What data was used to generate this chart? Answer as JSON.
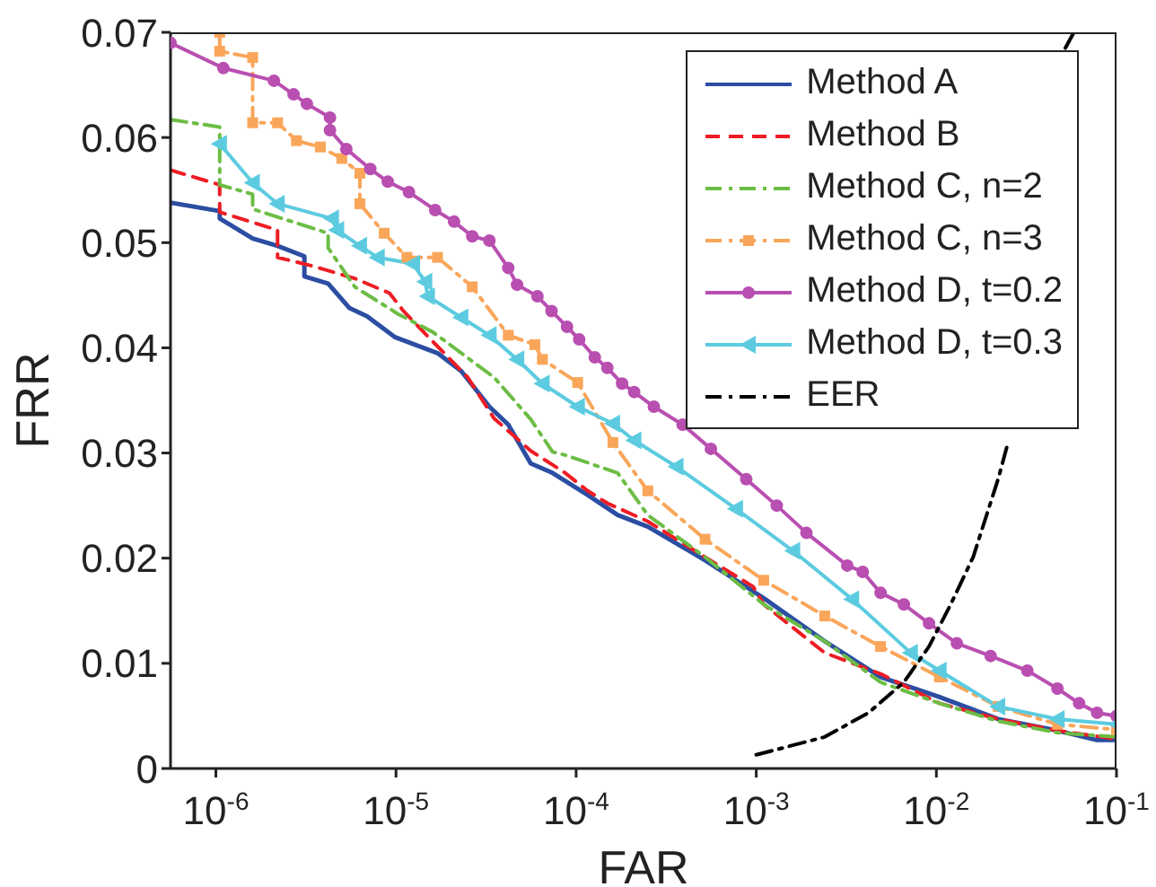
{
  "chart_data": {
    "type": "line",
    "xlabel": "FAR",
    "ylabel": "FRR",
    "log": "x",
    "xlim": [
      5.6e-07,
      0.1
    ],
    "ylim": [
      0,
      0.07
    ],
    "xticks": [
      {
        "value": 1e-06,
        "label": "10$^{-6}$"
      },
      {
        "value": 1e-05,
        "label": "10$^{-5}$"
      },
      {
        "value": 0.0001,
        "label": "10$^{-4}$"
      },
      {
        "value": 0.001,
        "label": "10$^{-3}$"
      },
      {
        "value": 0.01,
        "label": "10$^{-2}$"
      },
      {
        "value": 0.1,
        "label": "10$^{-1}$"
      }
    ],
    "yticks": [
      0,
      0.01,
      0.02,
      0.03,
      0.04,
      0.05,
      0.06,
      0.07
    ],
    "grid": false,
    "legend": "top right",
    "series": [
      {
        "name": "Method A",
        "color": "#2b4ea2",
        "line_style": "solid",
        "marker": "none",
        "x": [
          5.6e-07,
          1.05e-06,
          1.05e-06,
          1.6e-06,
          2.2e-06,
          3.1e-06,
          3.1e-06,
          4.2e-06,
          5.5e-06,
          6.9e-06,
          9.9e-06,
          1.7e-05,
          2.3e-05,
          3.3e-05,
          4.2e-05,
          5.6e-05,
          7.4e-05,
          0.000116,
          0.00017,
          0.00025,
          0.00052,
          0.0011,
          0.0024,
          0.0049,
          0.0104,
          0.022,
          0.047,
          0.078,
          0.1
        ],
        "values": [
          0.0538,
          0.053,
          0.0523,
          0.0504,
          0.0497,
          0.0487,
          0.0468,
          0.0461,
          0.0438,
          0.043,
          0.041,
          0.0395,
          0.0378,
          0.0344,
          0.0327,
          0.029,
          0.0281,
          0.026,
          0.0241,
          0.023,
          0.0198,
          0.0162,
          0.0121,
          0.0087,
          0.0068,
          0.0047,
          0.0036,
          0.0027,
          0.0027
        ]
      },
      {
        "name": "Method B",
        "color": "#ee1c24",
        "line_style": "dashed",
        "marker": "none",
        "x": [
          5.6e-07,
          1.05e-06,
          1.05e-06,
          2.2e-06,
          2.2e-06,
          3.4e-06,
          5.9e-06,
          9.2e-06,
          1.1e-05,
          1.6e-05,
          2.5e-05,
          3.5e-05,
          5.6e-05,
          8.7e-05,
          0.000116,
          0.00015,
          0.00025,
          0.00052,
          0.00096,
          0.0011,
          0.0024,
          0.0049,
          0.0104,
          0.022,
          0.047,
          0.1
        ],
        "values": [
          0.0569,
          0.0555,
          0.0529,
          0.0512,
          0.0486,
          0.0478,
          0.0466,
          0.0452,
          0.0435,
          0.0406,
          0.0372,
          0.0333,
          0.0302,
          0.0281,
          0.0264,
          0.0252,
          0.0235,
          0.0201,
          0.0173,
          0.0156,
          0.011,
          0.009,
          0.0062,
          0.0047,
          0.0036,
          0.0028
        ]
      },
      {
        "name": "Method C, n=2",
        "color": "#6cbd45",
        "line_style": "dashdot",
        "marker": "none",
        "x": [
          5.6e-07,
          1.05e-06,
          1.05e-06,
          1.6e-06,
          1.6e-06,
          4.2e-06,
          4.2e-06,
          5.9e-06,
          1.03e-05,
          1.6e-05,
          3.5e-05,
          5.6e-05,
          7.4e-05,
          8.7e-05,
          0.00017,
          0.00025,
          0.00052,
          0.0011,
          0.0024,
          0.0049,
          0.0104,
          0.022,
          0.047,
          0.1
        ],
        "values": [
          0.0617,
          0.061,
          0.0555,
          0.0546,
          0.0532,
          0.0509,
          0.0495,
          0.0458,
          0.0432,
          0.0415,
          0.0372,
          0.0332,
          0.0301,
          0.0298,
          0.0281,
          0.0241,
          0.0201,
          0.0156,
          0.0121,
          0.0082,
          0.0062,
          0.0045,
          0.0034,
          0.003
        ]
      },
      {
        "name": "Method C, n=3",
        "color": "#f9a65a",
        "line_style": "dashdot",
        "marker": "square",
        "x": [
          1.05e-06,
          1.05e-06,
          1.6e-06,
          1.6e-06,
          2.2e-06,
          2.8e-06,
          3.8e-06,
          5e-06,
          6.3e-06,
          6.3e-06,
          8.6e-06,
          1.15e-05,
          1.7e-05,
          2.65e-05,
          4.2e-05,
          5.9e-05,
          6.5e-05,
          0.000102,
          0.00016,
          0.00025,
          0.00052,
          0.0011,
          0.0024,
          0.0049,
          0.0104,
          0.022,
          0.047,
          0.1
        ],
        "values": [
          0.07,
          0.0682,
          0.0676,
          0.0614,
          0.0614,
          0.0597,
          0.0591,
          0.058,
          0.0566,
          0.0537,
          0.0509,
          0.0486,
          0.0486,
          0.0458,
          0.0412,
          0.0403,
          0.0389,
          0.0367,
          0.031,
          0.0264,
          0.0218,
          0.0179,
          0.0145,
          0.0116,
          0.0087,
          0.0059,
          0.0042,
          0.0037
        ]
      },
      {
        "name": "Method D, t=0.2",
        "color": "#b94fb1",
        "line_style": "solid",
        "marker": "circle",
        "x": [
          5.6e-07,
          1.1e-06,
          2.1e-06,
          2.7e-06,
          3.2e-06,
          4.3e-06,
          4.3e-06,
          5.3e-06,
          7.2e-06,
          9e-06,
          1.18e-05,
          1.65e-05,
          2.1e-05,
          2.65e-05,
          3.3e-05,
          4.2e-05,
          4.7e-05,
          6.1e-05,
          7.3e-05,
          8.9e-05,
          0.000104,
          0.000127,
          0.000149,
          0.00018,
          0.00021,
          0.00027,
          0.00039,
          0.00056,
          0.00088,
          0.0013,
          0.0019,
          0.0032,
          0.0039,
          0.0049,
          0.0066,
          0.0091,
          0.013,
          0.02,
          0.032,
          0.047,
          0.062,
          0.078,
          0.1
        ],
        "values": [
          0.069,
          0.0666,
          0.0654,
          0.0641,
          0.0632,
          0.0619,
          0.0607,
          0.0589,
          0.057,
          0.0558,
          0.0548,
          0.0531,
          0.052,
          0.0506,
          0.0502,
          0.0476,
          0.046,
          0.0449,
          0.0435,
          0.042,
          0.0408,
          0.0391,
          0.0381,
          0.0366,
          0.0358,
          0.0344,
          0.0327,
          0.0304,
          0.0275,
          0.025,
          0.0224,
          0.0193,
          0.0187,
          0.0167,
          0.0156,
          0.0138,
          0.0119,
          0.0107,
          0.0093,
          0.0076,
          0.0062,
          0.0053,
          0.005
        ]
      },
      {
        "name": "Method D, t=0.3",
        "color": "#5ccbe0",
        "line_style": "solid",
        "marker": "triangle",
        "x": [
          1.05e-06,
          1.6e-06,
          2.2e-06,
          4.4e-06,
          4.7e-06,
          6.3e-06,
          7.9e-06,
          1.24e-05,
          1.45e-05,
          1.5e-05,
          2.3e-05,
          3.3e-05,
          4.7e-05,
          6.5e-05,
          0.000102,
          0.00016,
          0.00021,
          0.00036,
          0.00077,
          0.0016,
          0.0034,
          0.0072,
          0.0104,
          0.022,
          0.047,
          0.1
        ],
        "values": [
          0.0594,
          0.0557,
          0.0537,
          0.0523,
          0.0512,
          0.0497,
          0.0486,
          0.048,
          0.0463,
          0.0449,
          0.0429,
          0.0412,
          0.0389,
          0.0366,
          0.0344,
          0.0328,
          0.0312,
          0.0287,
          0.0247,
          0.0207,
          0.0161,
          0.011,
          0.0093,
          0.0059,
          0.0047,
          0.0042
        ]
      },
      {
        "name": "EER",
        "color": "#000000",
        "line_style": "dashdot",
        "marker": "none",
        "x": [
          0.001,
          0.0024,
          0.0042,
          0.0066,
          0.0091,
          0.012,
          0.016,
          0.022,
          0.025,
          0.035,
          0.052,
          0.058
        ],
        "values": [
          0.0013,
          0.003,
          0.0053,
          0.0082,
          0.0116,
          0.0156,
          0.0201,
          0.0275,
          0.031,
          null,
          0.0685,
          0.07
        ]
      }
    ]
  }
}
